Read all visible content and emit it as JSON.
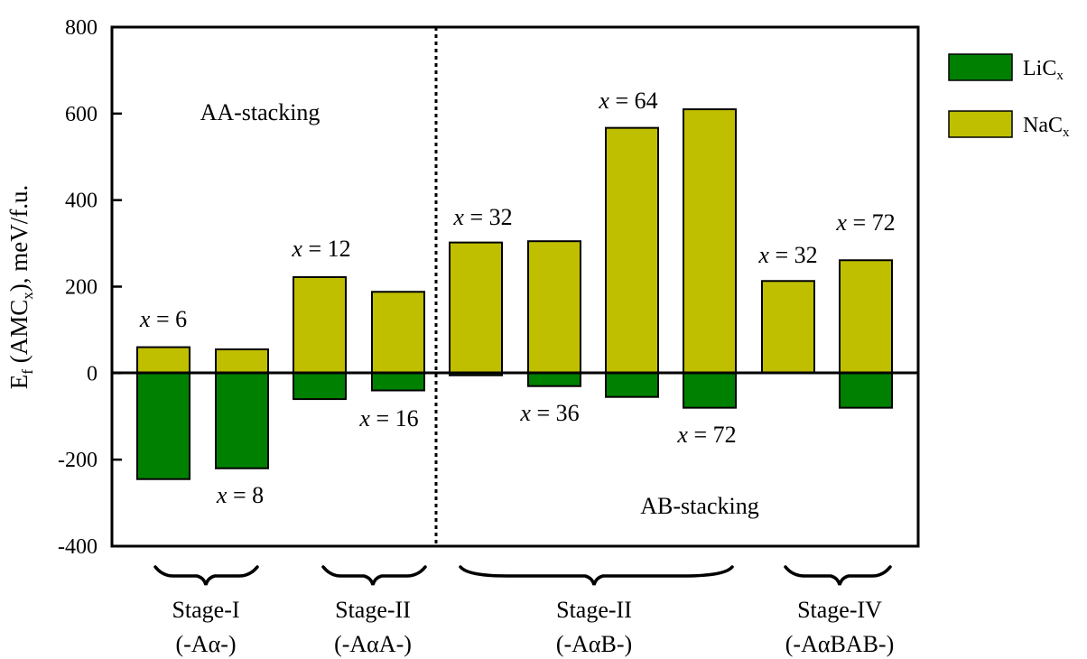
{
  "chart_data": {
    "type": "bar",
    "ylabel": "E",
    "ylabel_sub": "f",
    "ylabel_rest": " (AMC",
    "ylabel_sub2": "x",
    "ylabel_end": "), meV/f.u.",
    "ylim": [
      -400,
      800
    ],
    "yticks": [
      "800",
      "600",
      "400",
      "200",
      "0",
      "-200",
      "-400"
    ],
    "ytick_values": [
      800,
      600,
      400,
      200,
      0,
      -200,
      -400
    ],
    "legend_placement": "right",
    "series": [
      {
        "key": "li",
        "name": "LiC",
        "name_sub": "x",
        "color": "#008000",
        "values": [
          -245,
          -220,
          -60,
          -40,
          -5,
          -30,
          -55,
          -80,
          0,
          -80
        ]
      },
      {
        "key": "na",
        "name": "NaC",
        "name_sub": "x",
        "color": "#bfbf00",
        "values": [
          60,
          55,
          222,
          188,
          302,
          305,
          567,
          610,
          213,
          261
        ]
      }
    ],
    "annotations": [
      {
        "var": "x",
        "text": " = 6"
      },
      {
        "var": "x",
        "text": " = 8"
      },
      {
        "var": "x",
        "text": " = 12"
      },
      {
        "var": "x",
        "text": " = 16"
      },
      {
        "var": "x",
        "text": " = 32"
      },
      {
        "var": "x",
        "text": " = 36"
      },
      {
        "var": "x",
        "text": " = 64"
      },
      {
        "var": "x",
        "text": " = 72"
      },
      {
        "var": "x",
        "text": " = 32"
      },
      {
        "var": "x",
        "text": " = 72"
      }
    ],
    "regions": [
      {
        "label": "AA-stacking"
      },
      {
        "label": "AB-stacking"
      }
    ],
    "stages": [
      {
        "line1": "Stage-I",
        "line2": "(-Aα-)"
      },
      {
        "line1": "Stage-II",
        "line2": "(-AαA-)"
      },
      {
        "line1": "Stage-II",
        "line2": "(-AαB-)"
      },
      {
        "line1": "Stage-IV",
        "line2": "(-AαBAB-)"
      }
    ]
  }
}
